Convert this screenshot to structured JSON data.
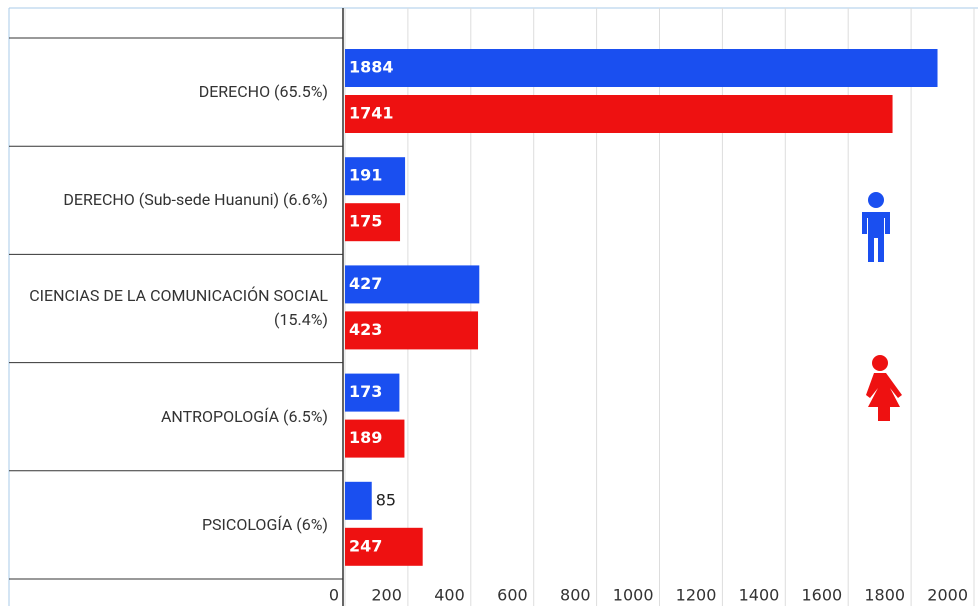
{
  "chart_data": {
    "type": "bar",
    "orientation": "horizontal",
    "categories": [
      "DERECHO (65.5%)",
      "DERECHO (Sub-sede Huanuni) (6.6%)",
      "CIENCIAS DE LA COMUNICACIÓN SOCIAL (15.4%)",
      "ANTROPOLOGÍA (6.5%)",
      "PSICOLOGÍA (6%)"
    ],
    "series": [
      {
        "color": "#1a4ff0",
        "values": [
          1884,
          191,
          427,
          173,
          85
        ]
      },
      {
        "color": "#ee1111",
        "values": [
          1741,
          175,
          423,
          189,
          247
        ]
      }
    ],
    "xlim": [
      0,
      2000
    ],
    "xticks": [
      0,
      200,
      400,
      600,
      800,
      1000,
      1200,
      1400,
      1600,
      1800,
      2000
    ],
    "grid": true
  }
}
